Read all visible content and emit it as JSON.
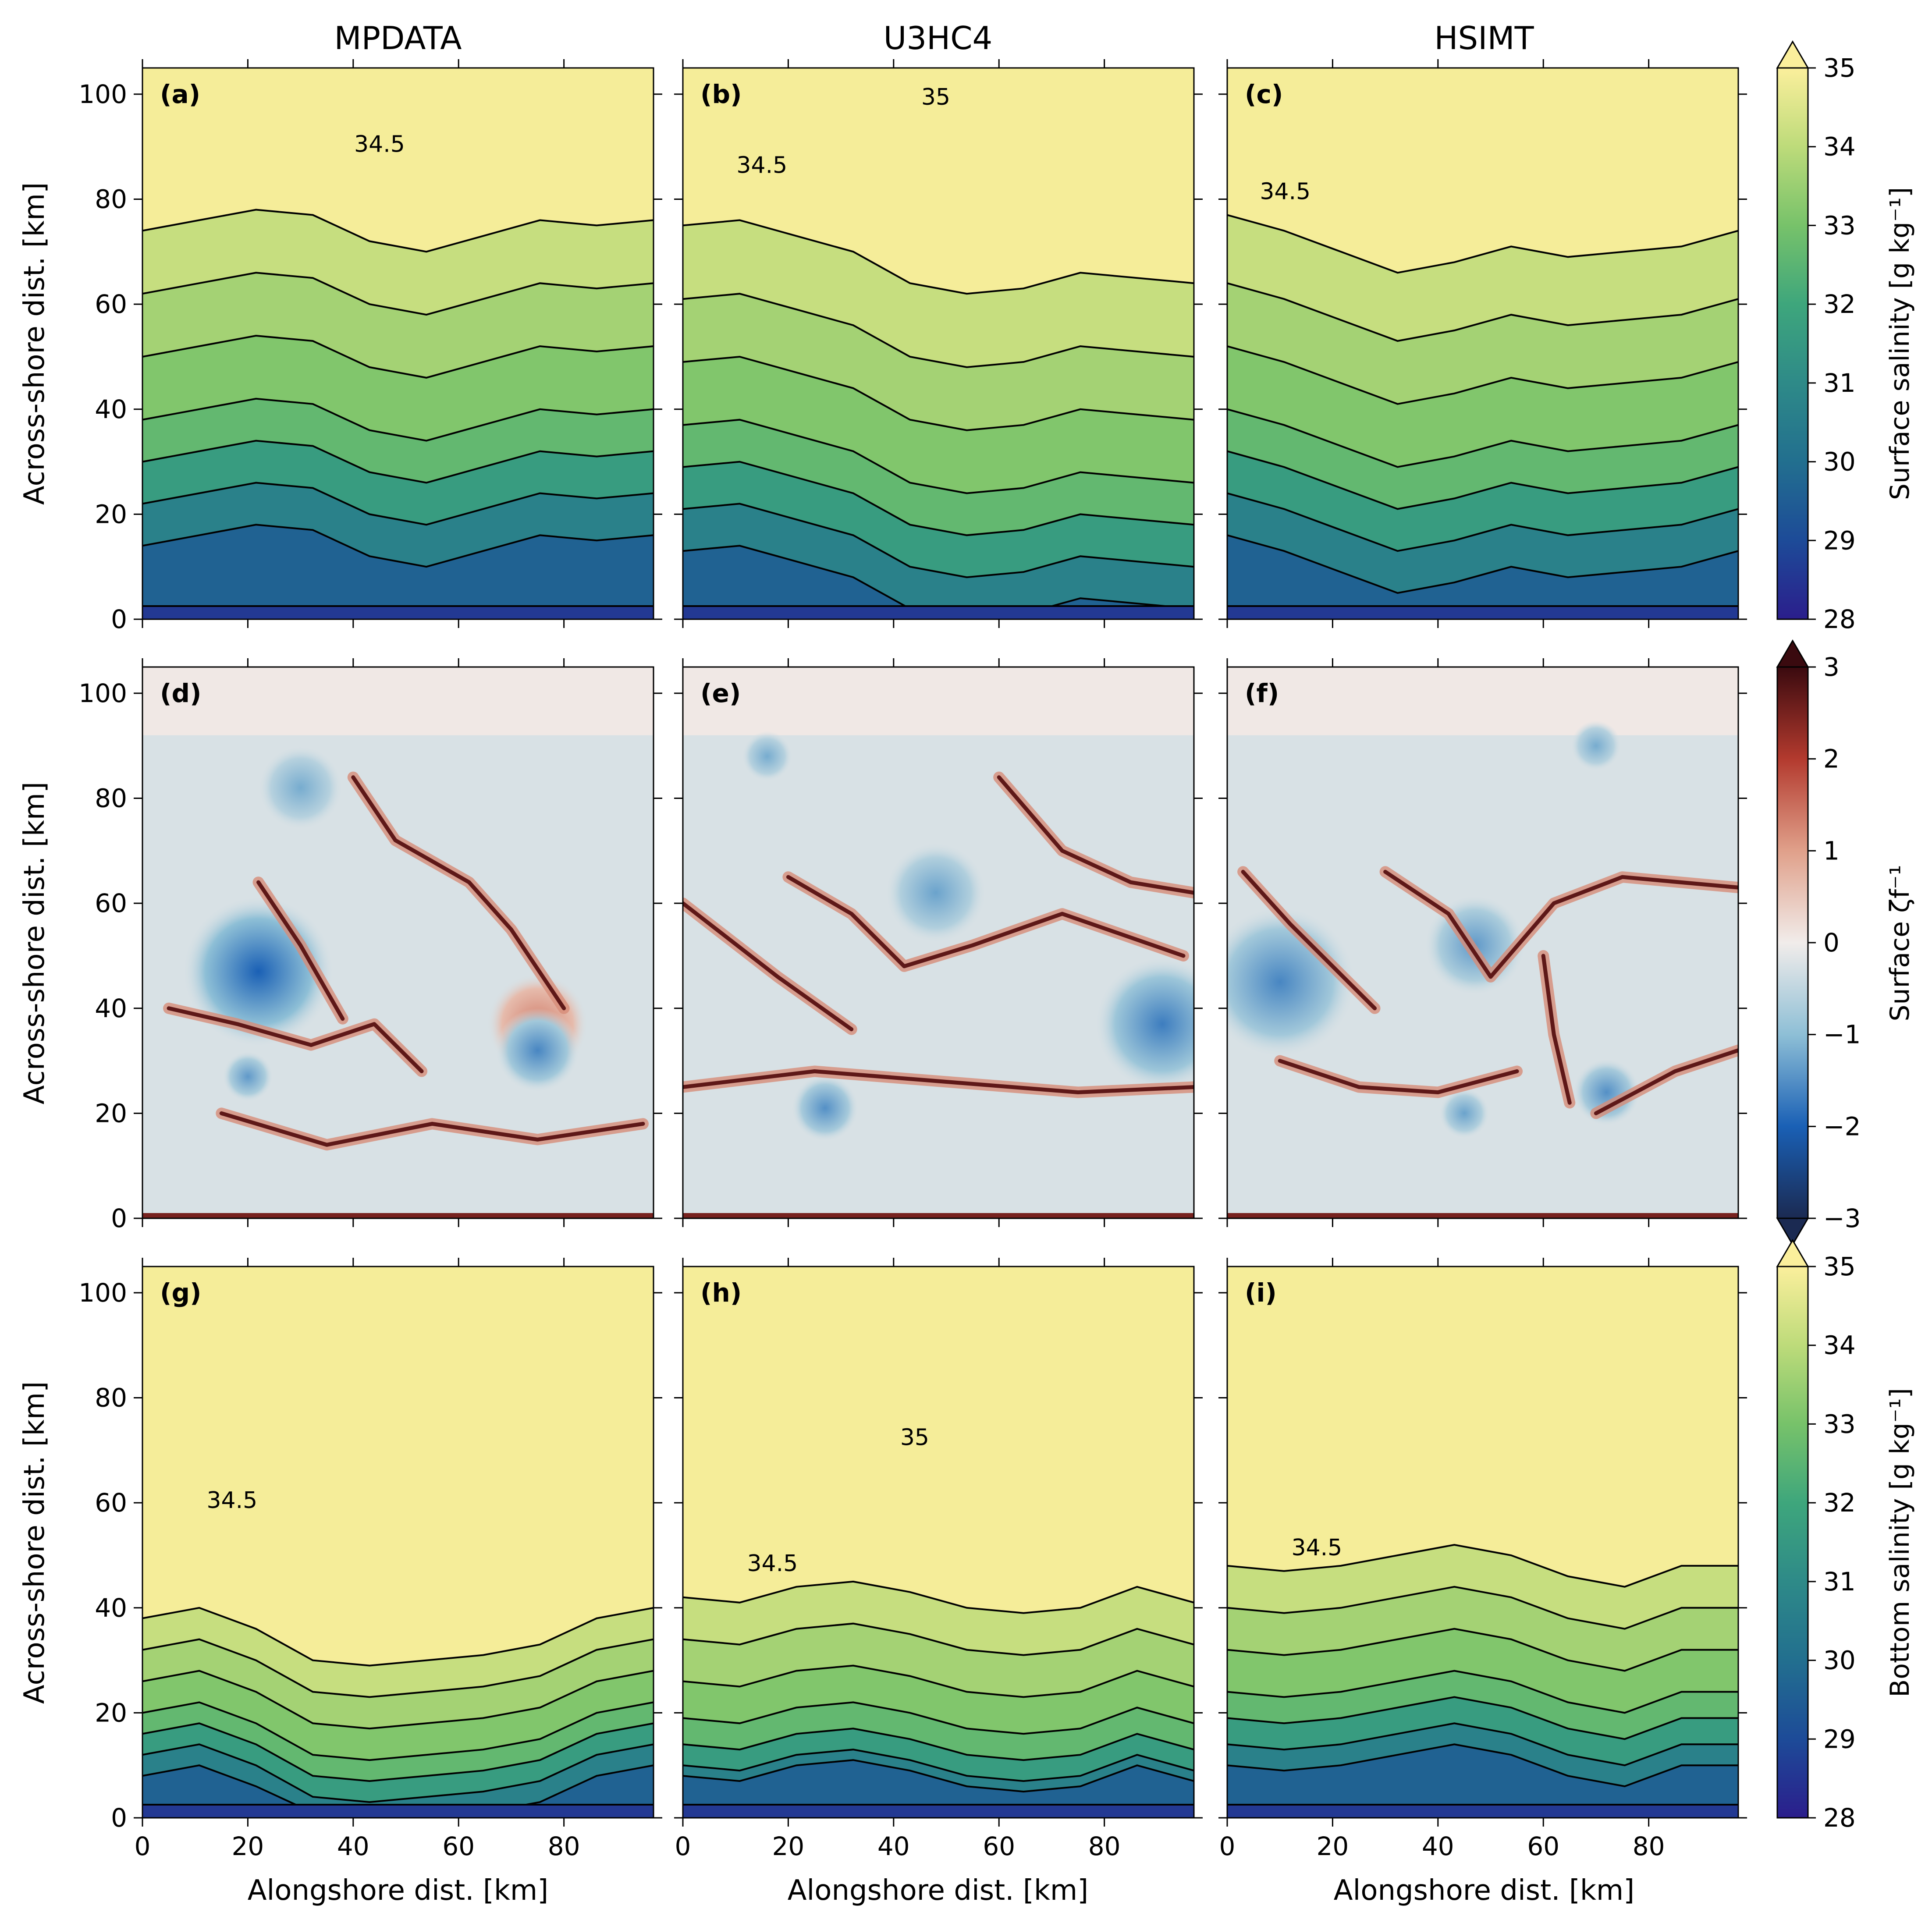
{
  "chart_data": {
    "type": "heatmap",
    "columns": [
      "MPDATA",
      "U3HC4",
      "HSIMT"
    ],
    "x_axis": {
      "label": "Alongshore dist. [km]",
      "ticks": [
        0,
        20,
        40,
        60,
        80
      ],
      "range": [
        0,
        97
      ]
    },
    "y_axis": {
      "label": "Across-shore dist. [km]",
      "ticks": [
        0,
        20,
        40,
        60,
        80,
        100
      ],
      "range": [
        0,
        105
      ]
    },
    "rows": [
      {
        "variable": "surface salinity",
        "colorbar": {
          "label": "Surface salinity [g kg⁻¹]",
          "ticks": [
            28,
            29,
            30,
            31,
            32,
            33,
            34,
            35
          ],
          "range": [
            28,
            35
          ],
          "extend": "max",
          "colors": [
            "#2b1e8c",
            "#1d4b98",
            "#226f8f",
            "#2e8a88",
            "#3ea67c",
            "#77c26a",
            "#bddb7a",
            "#fbef9c"
          ]
        },
        "panels": [
          {
            "letter": "(a)",
            "contour_labels": [
              {
                "text": "34.5",
                "x": 45,
                "y": 89
              }
            ],
            "front_y": [
              74,
              76,
              78,
              77,
              72,
              70,
              73,
              76,
              75,
              76
            ],
            "band_offsets": [
              0,
              -12,
              -24,
              -36,
              -46,
              -56,
              -66
            ]
          },
          {
            "letter": "(b)",
            "contour_labels": [
              {
                "text": "35",
                "x": 48,
                "y": 98
              },
              {
                "text": "34.5",
                "x": 15,
                "y": 85
              }
            ],
            "front_y": [
              75,
              76,
              73,
              70,
              64,
              62,
              63,
              66,
              65,
              64
            ],
            "band_offsets": [
              0,
              -14,
              -26,
              -38,
              -48,
              -58,
              -68
            ]
          },
          {
            "letter": "(c)",
            "contour_labels": [
              {
                "text": "34.5",
                "x": 11,
                "y": 80
              }
            ],
            "front_y": [
              77,
              74,
              70,
              66,
              68,
              71,
              69,
              70,
              71,
              74
            ],
            "band_offsets": [
              0,
              -13,
              -25,
              -37,
              -47,
              -57,
              -67
            ]
          }
        ]
      },
      {
        "variable": "surface vorticity",
        "colorbar": {
          "label": "Surface ζf⁻¹",
          "ticks": [
            -3,
            -2,
            -1,
            0,
            1,
            2,
            3
          ],
          "range": [
            -3,
            3
          ],
          "extend": "both",
          "colors": [
            "#1b2a52",
            "#1a60b5",
            "#8ebfd6",
            "#f1ecea",
            "#e0a08a",
            "#b33a2e",
            "#3a0a0f"
          ]
        },
        "panels": [
          {
            "letter": "(d)",
            "eddies": [
              {
                "x": 22,
                "y": 47,
                "r": 9,
                "v": -2
              },
              {
                "x": 75,
                "y": 37,
                "r": 6,
                "v": 1.3
              },
              {
                "x": 75,
                "y": 32,
                "r": 5,
                "v": -1.6
              },
              {
                "x": 30,
                "y": 82,
                "r": 5,
                "v": -1.2
              },
              {
                "x": 20,
                "y": 27,
                "r": 3,
                "v": -1.4
              }
            ],
            "fronts": [
              [
                [
                  5,
                  40
                ],
                [
                  18,
                  37
                ],
                [
                  32,
                  33
                ],
                [
                  44,
                  37
                ],
                [
                  53,
                  28
                ]
              ],
              [
                [
                  40,
                  84
                ],
                [
                  48,
                  72
                ],
                [
                  62,
                  64
                ],
                [
                  70,
                  55
                ],
                [
                  80,
                  40
                ]
              ],
              [
                [
                  22,
                  64
                ],
                [
                  30,
                  52
                ],
                [
                  38,
                  38
                ]
              ],
              [
                [
                  15,
                  20
                ],
                [
                  35,
                  14
                ],
                [
                  55,
                  18
                ],
                [
                  75,
                  15
                ],
                [
                  95,
                  18
                ]
              ]
            ]
          },
          {
            "letter": "(e)",
            "eddies": [
              {
                "x": 91,
                "y": 37,
                "r": 8,
                "v": -1.7
              },
              {
                "x": 48,
                "y": 62,
                "r": 6,
                "v": -1.3
              },
              {
                "x": 27,
                "y": 21,
                "r": 4,
                "v": -1.5
              },
              {
                "x": 16,
                "y": 88,
                "r": 3,
                "v": -1.2
              }
            ],
            "fronts": [
              [
                [
                  0,
                  60
                ],
                [
                  18,
                  46
                ],
                [
                  32,
                  36
                ]
              ],
              [
                [
                  20,
                  65
                ],
                [
                  32,
                  58
                ],
                [
                  42,
                  48
                ],
                [
                  55,
                  52
                ],
                [
                  72,
                  58
                ],
                [
                  95,
                  50
                ]
              ],
              [
                [
                  0,
                  25
                ],
                [
                  25,
                  28
                ],
                [
                  50,
                  26
                ],
                [
                  75,
                  24
                ],
                [
                  97,
                  25
                ]
              ],
              [
                [
                  60,
                  84
                ],
                [
                  72,
                  70
                ],
                [
                  85,
                  64
                ],
                [
                  97,
                  62
                ]
              ]
            ]
          },
          {
            "letter": "(f)",
            "eddies": [
              {
                "x": 10,
                "y": 45,
                "r": 9,
                "v": -1.6
              },
              {
                "x": 47,
                "y": 52,
                "r": 6,
                "v": -1.4
              },
              {
                "x": 72,
                "y": 24,
                "r": 4,
                "v": -1.5
              },
              {
                "x": 45,
                "y": 20,
                "r": 3,
                "v": -1.3
              },
              {
                "x": 70,
                "y": 90,
                "r": 3,
                "v": -1.2
              }
            ],
            "fronts": [
              [
                [
                  3,
                  66
                ],
                [
                  12,
                  56
                ],
                [
                  20,
                  48
                ],
                [
                  28,
                  40
                ]
              ],
              [
                [
                  30,
                  66
                ],
                [
                  42,
                  58
                ],
                [
                  50,
                  46
                ],
                [
                  62,
                  60
                ],
                [
                  75,
                  65
                ],
                [
                  97,
                  63
                ]
              ],
              [
                [
                  10,
                  30
                ],
                [
                  25,
                  25
                ],
                [
                  40,
                  24
                ],
                [
                  55,
                  28
                ]
              ],
              [
                [
                  60,
                  50
                ],
                [
                  62,
                  35
                ],
                [
                  65,
                  22
                ]
              ],
              [
                [
                  70,
                  20
                ],
                [
                  85,
                  28
                ],
                [
                  97,
                  32
                ]
              ]
            ]
          }
        ]
      },
      {
        "variable": "bottom salinity",
        "colorbar": {
          "label": "Bottom salinity [g kg⁻¹]",
          "ticks": [
            28,
            29,
            30,
            31,
            32,
            33,
            34,
            35
          ],
          "range": [
            28,
            35
          ],
          "extend": "max",
          "colors": [
            "#2b1e8c",
            "#1d4b98",
            "#226f8f",
            "#2e8a88",
            "#3ea67c",
            "#77c26a",
            "#bddb7a",
            "#fbef9c"
          ]
        },
        "panels": [
          {
            "letter": "(g)",
            "contour_labels": [
              {
                "text": "34.5",
                "x": 17,
                "y": 59
              }
            ],
            "front_y": [
              38,
              40,
              36,
              30,
              29,
              30,
              31,
              33,
              38,
              40
            ],
            "band_offsets": [
              0,
              -6,
              -12,
              -18,
              -24,
              -30,
              -36
            ]
          },
          {
            "letter": "(h)",
            "contour_labels": [
              {
                "text": "35",
                "x": 44,
                "y": 71
              },
              {
                "text": "34.5",
                "x": 17,
                "y": 47
              }
            ],
            "front_y": [
              42,
              41,
              44,
              45,
              43,
              40,
              39,
              40,
              44,
              41
            ],
            "band_offsets": [
              0,
              -8,
              -16,
              -23,
              -30,
              -36,
              -40
            ]
          },
          {
            "letter": "(i)",
            "contour_labels": [
              {
                "text": "34.5",
                "x": 17,
                "y": 50
              }
            ],
            "front_y": [
              48,
              47,
              48,
              50,
              52,
              50,
              46,
              44,
              48,
              48
            ],
            "band_offsets": [
              0,
              -8,
              -16,
              -24,
              -31,
              -38,
              -44
            ]
          }
        ]
      }
    ]
  }
}
